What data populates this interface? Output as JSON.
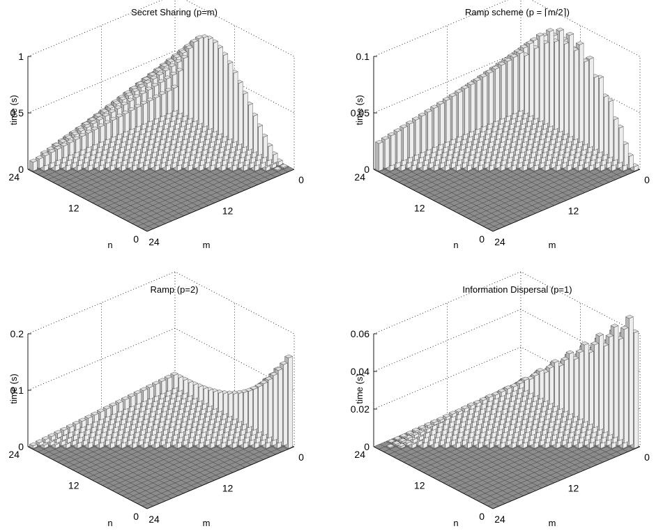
{
  "chart_data": [
    {
      "type": "bar3d",
      "title": "Secret Sharing (p=m)",
      "zlabel": "time (s)",
      "xlabel": "m",
      "ylabel": "n",
      "zlim": [
        0,
        1
      ],
      "zticks": [
        "0",
        "0.5",
        "1"
      ],
      "mticks": [
        "24",
        "12",
        "0"
      ],
      "nticks": [
        "0",
        "12",
        "24"
      ],
      "m_range": [
        0,
        24
      ],
      "n_range": [
        0,
        24
      ],
      "formula": "cubic",
      "peak": 0.8
    },
    {
      "type": "bar3d",
      "title": "Ramp scheme (p = ⌈m/2⌉)",
      "zlabel": "time (s)",
      "xlabel": "m",
      "ylabel": "n",
      "zlim": [
        0,
        0.1
      ],
      "zticks": [
        "0",
        "0.05",
        "0.1"
      ],
      "mticks": [
        "24",
        "12",
        "0"
      ],
      "nticks": [
        "0",
        "12",
        "24"
      ],
      "m_range": [
        0,
        24
      ],
      "n_range": [
        0,
        24
      ],
      "formula": "ramp-half",
      "peak": 0.105
    },
    {
      "type": "bar3d",
      "title": "Ramp (p=2)",
      "zlabel": "time (s)",
      "xlabel": "m",
      "ylabel": "n",
      "zlim": [
        0,
        0.2
      ],
      "zticks": [
        "0",
        "0.1",
        "0.2"
      ],
      "mticks": [
        "24",
        "12",
        "0"
      ],
      "nticks": [
        "0",
        "12",
        "24"
      ],
      "m_range": [
        0,
        24
      ],
      "n_range": [
        0,
        24
      ],
      "formula": "ramp-two",
      "peak": 0.16
    },
    {
      "type": "bar3d",
      "title": "Information Dispersal (p=1)",
      "zlabel": "time (s)",
      "xlabel": "m",
      "ylabel": "n",
      "zlim": [
        0,
        0.06
      ],
      "zticks": [
        "0",
        "0.02",
        "0.04",
        "0.06"
      ],
      "mticks": [
        "24",
        "12",
        "0"
      ],
      "nticks": [
        "0",
        "12",
        "24"
      ],
      "m_range": [
        0,
        24
      ],
      "n_range": [
        0,
        24
      ],
      "formula": "dispersal",
      "peak": 0.066
    }
  ]
}
